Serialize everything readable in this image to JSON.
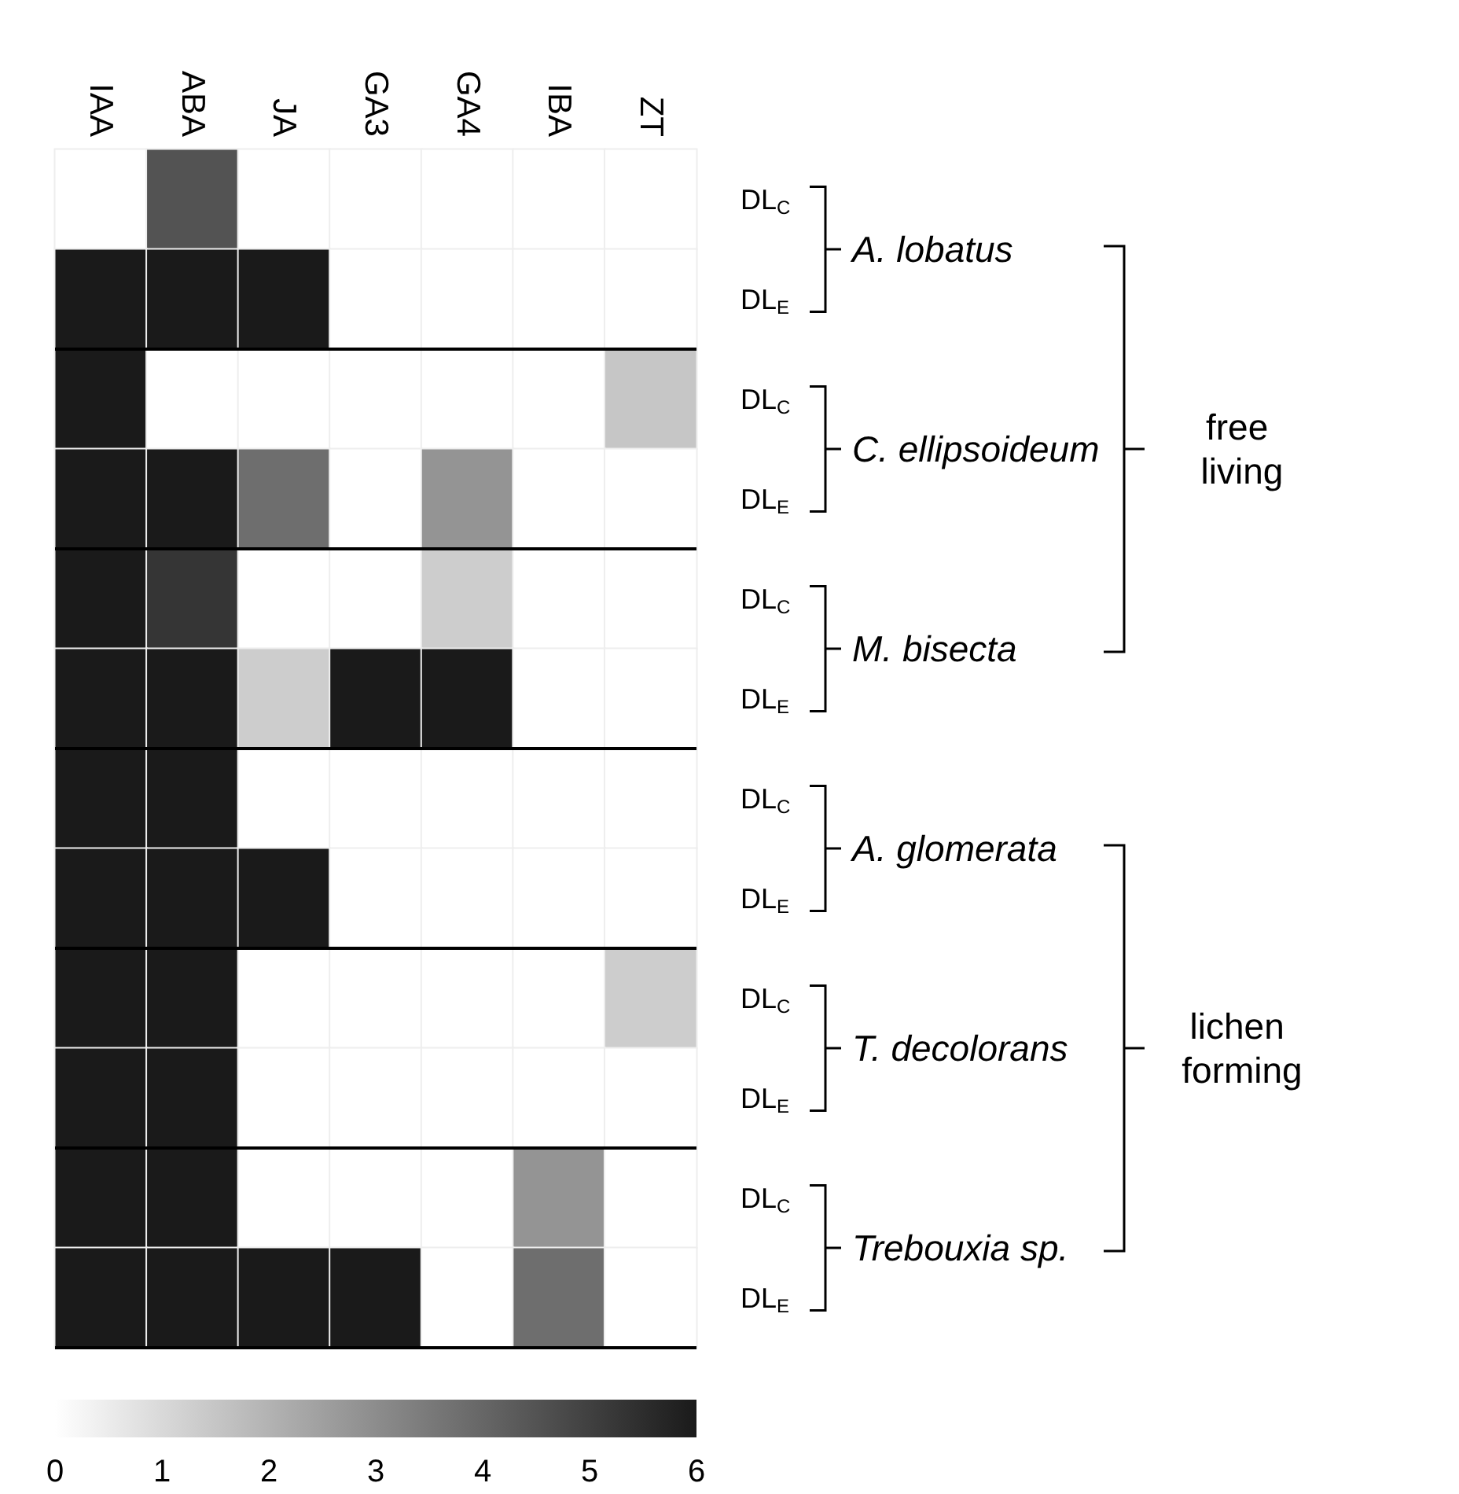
{
  "chart_data": {
    "type": "heatmap",
    "categories": [
      "IAA",
      "ABA",
      "JA",
      "GA3",
      "GA4",
      "IBA",
      "ZT"
    ],
    "y_categories": [
      "DL$_{C}$",
      "DL$_{E}$",
      "DL$_{C}$",
      "DL$_{E}$",
      "DL$_{C}$",
      "DL$_{E}$",
      "DL$_{C}$",
      "DL$_{E}$",
      "DL$_{C}$",
      "DL$_{E}$",
      "DL$_{C}$",
      "DL$_{E}$"
    ],
    "cells": [
      [
        0,
        4.5,
        0,
        0,
        0,
        0,
        0
      ],
      [
        6,
        6,
        6,
        0,
        0,
        0,
        0
      ],
      [
        6,
        0,
        0,
        0,
        0,
        0,
        1.5
      ],
      [
        6,
        6,
        3.8,
        0,
        2.8,
        0,
        0
      ],
      [
        6,
        5.3,
        0,
        0,
        1.3,
        0,
        0
      ],
      [
        6,
        6,
        1.3,
        6,
        6,
        0,
        0
      ],
      [
        6,
        6,
        0,
        0,
        0,
        0,
        0
      ],
      [
        6,
        6,
        6,
        0,
        0,
        0,
        0
      ],
      [
        6,
        6,
        0,
        0,
        0,
        0,
        1.3
      ],
      [
        6,
        6,
        0,
        0,
        0,
        0,
        0
      ],
      [
        6,
        6,
        0,
        0,
        0,
        2.8,
        0
      ],
      [
        6,
        6,
        6,
        6,
        0,
        3.8,
        0
      ]
    ],
    "clim": [
      0,
      6
    ],
    "cticks": [
      0,
      1,
      2,
      3,
      4,
      5,
      6
    ],
    "annotations": [
      "A. lobatus",
      "C. ellipsoideum",
      "M. bisecta",
      "A. glomerata",
      "T. decolorans",
      "Trebouxia sp.",
      "free living",
      "lichen forming"
    ]
  }
}
